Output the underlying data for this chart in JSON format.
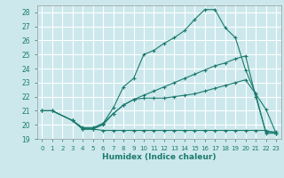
{
  "xlabel": "Humidex (Indice chaleur)",
  "xlim": [
    -0.5,
    23.5
  ],
  "ylim": [
    19,
    28.5
  ],
  "yticks": [
    19,
    20,
    21,
    22,
    23,
    24,
    25,
    26,
    27,
    28
  ],
  "xticks": [
    0,
    1,
    2,
    3,
    4,
    5,
    6,
    7,
    8,
    9,
    10,
    11,
    12,
    13,
    14,
    15,
    16,
    17,
    18,
    19,
    20,
    21,
    22,
    23
  ],
  "bg_color": "#cce8ec",
  "grid_color": "#ffffff",
  "line_color": "#1a7a6e",
  "line2": {
    "x": [
      0,
      1,
      3,
      4,
      5,
      6,
      7,
      8,
      9,
      10,
      11,
      12,
      13,
      14,
      15,
      16,
      17,
      18,
      19,
      20,
      21,
      22,
      23
    ],
    "y": [
      21.0,
      21.0,
      20.3,
      19.7,
      19.7,
      20.1,
      21.2,
      22.7,
      23.3,
      25.0,
      25.3,
      25.8,
      26.2,
      26.7,
      27.5,
      28.2,
      28.2,
      26.9,
      26.2,
      23.9,
      22.2,
      21.1,
      19.4
    ]
  },
  "line1": {
    "x": [
      0,
      1,
      3,
      4,
      5,
      6,
      7,
      8,
      9,
      10,
      11,
      12,
      13,
      14,
      15,
      16,
      17,
      18,
      19,
      20,
      21,
      22,
      23
    ],
    "y": [
      21.0,
      21.0,
      20.3,
      19.7,
      19.7,
      20.0,
      20.8,
      21.4,
      21.8,
      22.1,
      22.4,
      22.7,
      23.0,
      23.3,
      23.6,
      23.9,
      24.2,
      24.4,
      24.7,
      24.9,
      22.0,
      19.5,
      19.5
    ]
  },
  "line3": {
    "x": [
      0,
      1,
      3,
      4,
      5,
      6,
      7,
      8,
      9,
      10,
      11,
      12,
      13,
      14,
      15,
      16,
      17,
      18,
      19,
      20,
      21,
      22,
      23
    ],
    "y": [
      21.0,
      21.0,
      20.3,
      19.8,
      19.8,
      20.1,
      20.8,
      21.4,
      21.8,
      21.9,
      21.9,
      21.9,
      22.0,
      22.1,
      22.2,
      22.4,
      22.6,
      22.8,
      23.0,
      23.2,
      22.2,
      19.4,
      19.4
    ]
  },
  "line4": {
    "x": [
      3,
      4,
      5,
      6,
      7,
      8,
      9,
      10,
      11,
      12,
      13,
      14,
      15,
      16,
      17,
      18,
      19,
      20,
      21,
      22,
      23
    ],
    "y": [
      20.3,
      19.7,
      19.7,
      19.6,
      19.6,
      19.6,
      19.6,
      19.6,
      19.6,
      19.6,
      19.6,
      19.6,
      19.6,
      19.6,
      19.6,
      19.6,
      19.6,
      19.6,
      19.6,
      19.6,
      19.4
    ]
  }
}
